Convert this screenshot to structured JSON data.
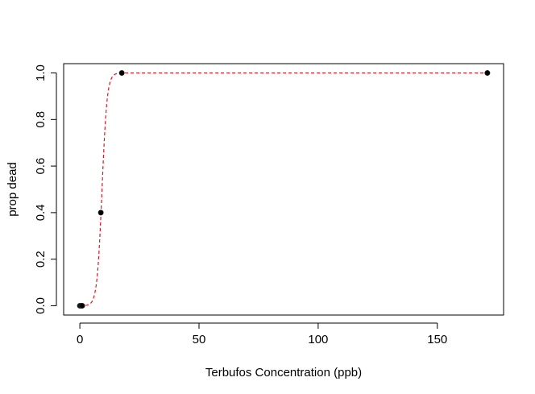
{
  "chart_data": {
    "type": "scatter",
    "title": "",
    "xlabel": "Terbufos Concentration (ppb)",
    "ylabel": "prop dead",
    "xlim": [
      -6.8,
      177.8
    ],
    "ylim": [
      -0.04,
      1.04
    ],
    "x_ticks": [
      0,
      50,
      100,
      150
    ],
    "x_tick_labels": [
      "0",
      "50",
      "100",
      "150"
    ],
    "y_ticks": [
      0.0,
      0.2,
      0.4,
      0.6,
      0.8,
      1.0
    ],
    "y_tick_labels": [
      "0.0",
      "0.2",
      "0.4",
      "0.6",
      "0.8",
      "1.0"
    ],
    "grid": false,
    "series": [
      {
        "kind": "points",
        "color": "#000000",
        "x": [
          0,
          0.5,
          1,
          8.8,
          17.6,
          171
        ],
        "y": [
          0,
          0,
          0,
          0.4,
          1.0,
          1.0
        ]
      },
      {
        "kind": "fitted-curve",
        "color": "#e8131a",
        "line_style": "dashed",
        "model": "logistic",
        "ec50": 9.3,
        "slope": 0.95
      }
    ]
  }
}
